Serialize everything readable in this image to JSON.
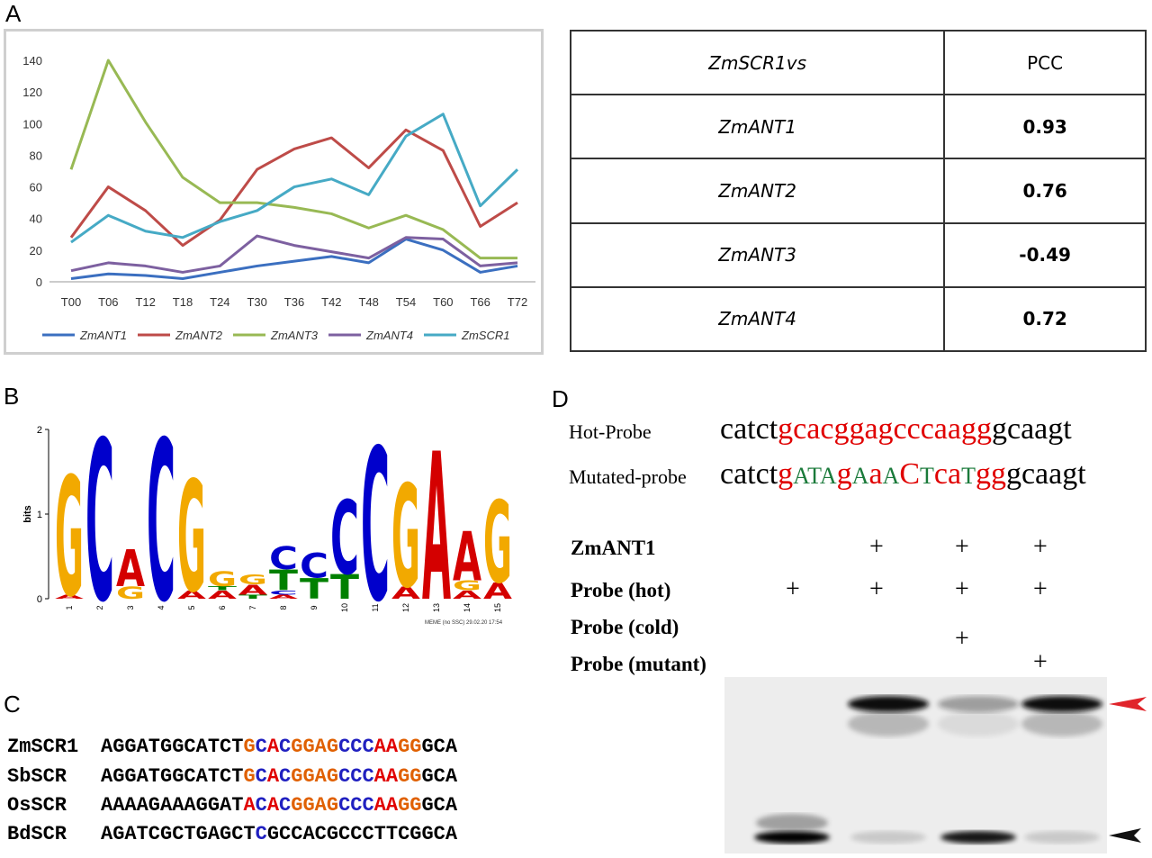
{
  "panels": {
    "a": "A",
    "b": "B",
    "c": "C",
    "d": "D"
  },
  "chart_data": {
    "type": "line",
    "categories": [
      "T00",
      "T06",
      "T12",
      "T18",
      "T24",
      "T30",
      "T36",
      "T42",
      "T48",
      "T54",
      "T60",
      "T66",
      "T72"
    ],
    "ylim": [
      0,
      140
    ],
    "yticks": [
      0,
      20,
      40,
      60,
      80,
      100,
      120,
      140
    ],
    "grid": false,
    "legend": "bottom",
    "series": [
      {
        "name": "ZmANT1",
        "color": "#3b6fc0",
        "values": [
          2,
          5,
          4,
          2,
          6,
          10,
          13,
          16,
          12,
          27,
          20,
          6,
          10
        ]
      },
      {
        "name": "ZmANT2",
        "color": "#be4b48",
        "values": [
          28,
          60,
          45,
          23,
          39,
          71,
          84,
          91,
          72,
          96,
          83,
          35,
          50
        ]
      },
      {
        "name": "ZmANT3",
        "color": "#98b954",
        "values": [
          71,
          140,
          101,
          66,
          50,
          50,
          47,
          43,
          34,
          42,
          33,
          15,
          15
        ]
      },
      {
        "name": "ZmANT4",
        "color": "#7d60a0",
        "values": [
          7,
          12,
          10,
          6,
          10,
          29,
          23,
          19,
          15,
          28,
          27,
          10,
          12
        ]
      },
      {
        "name": "ZmSCR1",
        "color": "#46aac5",
        "values": [
          25,
          42,
          32,
          28,
          38,
          45,
          60,
          65,
          55,
          92,
          106,
          48,
          71
        ]
      }
    ]
  },
  "pcc_table": {
    "header": [
      "ZmSCR1vs",
      "PCC"
    ],
    "rows": [
      {
        "gene": "ZmANT1",
        "pcc": "0.93"
      },
      {
        "gene": "ZmANT2",
        "pcc": "0.76"
      },
      {
        "gene": "ZmANT3",
        "pcc": "-0.49"
      },
      {
        "gene": "ZmANT4",
        "pcc": "0.72"
      }
    ]
  },
  "logo": {
    "ylabel": "bits",
    "yticks": [
      "0",
      "1",
      "2"
    ],
    "positions": [
      "1",
      "2",
      "3",
      "4",
      "5",
      "6",
      "7",
      "8",
      "9",
      "10",
      "11",
      "12",
      "13",
      "14",
      "15"
    ],
    "footer": "MEME (no SSC) 29.02.20 17:54",
    "colors": {
      "A": "#d40000",
      "C": "#0000cc",
      "G": "#f2a900",
      "T": "#008000"
    },
    "stacks": [
      [
        [
          "A",
          0.05
        ],
        [
          "G",
          1.45
        ]
      ],
      [
        [
          "C",
          1.95
        ]
      ],
      [
        [
          "G",
          0.15
        ],
        [
          "A",
          0.45
        ]
      ],
      [
        [
          "C",
          1.95
        ]
      ],
      [
        [
          "A",
          0.1
        ],
        [
          "G",
          1.35
        ]
      ],
      [
        [
          "A",
          0.1
        ],
        [
          "T",
          0.05
        ],
        [
          "G",
          0.18
        ]
      ],
      [
        [
          "T",
          0.05
        ],
        [
          "A",
          0.12
        ],
        [
          "G",
          0.12
        ]
      ],
      [
        [
          "A",
          0.05
        ],
        [
          "C",
          0.05
        ],
        [
          "T",
          0.25
        ],
        [
          "C",
          0.28
        ]
      ],
      [
        [
          "T",
          0.25
        ],
        [
          "C",
          0.3
        ]
      ],
      [
        [
          "T",
          0.3
        ],
        [
          "C",
          0.9
        ]
      ],
      [
        [
          "C",
          1.85
        ]
      ],
      [
        [
          "A",
          0.15
        ],
        [
          "G",
          1.25
        ]
      ],
      [
        [
          "A",
          1.8
        ]
      ],
      [
        [
          "A",
          0.1
        ],
        [
          "G",
          0.12
        ],
        [
          "A",
          0.6
        ]
      ],
      [
        [
          "A",
          0.2
        ],
        [
          "G",
          1.0
        ]
      ]
    ]
  },
  "alignment": {
    "colors": {
      "black": "#000000",
      "orange": "#e06000",
      "red": "#e00000",
      "blue": "#2020c0"
    },
    "rows": [
      {
        "name": "ZmSCR1",
        "segments": [
          [
            "AGGATGGCATCT",
            "black"
          ],
          [
            "G",
            "orange"
          ],
          [
            "C",
            "blue"
          ],
          [
            "A",
            "red"
          ],
          [
            "C",
            "blue"
          ],
          [
            "GGAG",
            "orange"
          ],
          [
            "CCC",
            "blue"
          ],
          [
            "AA",
            "red"
          ],
          [
            "GG",
            "orange"
          ],
          [
            "GCA",
            "black"
          ]
        ]
      },
      {
        "name": "SbSCR",
        "segments": [
          [
            "AGGATGGCATCT",
            "black"
          ],
          [
            "G",
            "orange"
          ],
          [
            "C",
            "blue"
          ],
          [
            "A",
            "red"
          ],
          [
            "C",
            "blue"
          ],
          [
            "GGAG",
            "orange"
          ],
          [
            "CCC",
            "blue"
          ],
          [
            "AA",
            "red"
          ],
          [
            "GG",
            "orange"
          ],
          [
            "GCA",
            "black"
          ]
        ]
      },
      {
        "name": "OsSCR",
        "segments": [
          [
            "AAAAGAAAGGAT",
            "black"
          ],
          [
            "A",
            "red"
          ],
          [
            "C",
            "blue"
          ],
          [
            "A",
            "red"
          ],
          [
            "C",
            "blue"
          ],
          [
            "GGAG",
            "orange"
          ],
          [
            "CCC",
            "blue"
          ],
          [
            "AA",
            "red"
          ],
          [
            "GG",
            "orange"
          ],
          [
            "GCA",
            "black"
          ]
        ]
      },
      {
        "name": "BdSCR",
        "segments": [
          [
            "AGATCGCTGAGCT",
            "black"
          ],
          [
            "C",
            "blue"
          ],
          [
            "GCCACGCCCTTCGGCA",
            "black"
          ]
        ]
      }
    ]
  },
  "probes": {
    "colors": {
      "black": "#000000",
      "red": "#e00000",
      "green": "#1a7a3a"
    },
    "hot": {
      "name": "Hot-Probe",
      "segments": [
        [
          "catct",
          "black"
        ],
        [
          "gcacggagcccaagg",
          "red"
        ],
        [
          "gcaagt",
          "black"
        ]
      ]
    },
    "mutated": {
      "name": "Mutated-probe",
      "segments": [
        [
          "catct",
          "black"
        ],
        [
          "g",
          "red"
        ],
        [
          "ATA",
          "green"
        ],
        [
          "g",
          "red"
        ],
        [
          "A",
          "green"
        ],
        [
          "a",
          "red"
        ],
        [
          "A",
          "green"
        ],
        [
          "C",
          "red"
        ],
        [
          "T",
          "green"
        ],
        [
          "ca",
          "red"
        ],
        [
          "T",
          "green"
        ],
        [
          "gg",
          "red"
        ],
        [
          "gcaagt",
          "black"
        ]
      ]
    }
  },
  "emsa": {
    "row_labels": [
      "ZmANT1",
      "Probe (hot)",
      "Probe (cold)",
      "Probe (mutant)"
    ],
    "plus_symbol": "+",
    "lanes": [
      {
        "ZmANT1": false,
        "hot": true,
        "cold": false,
        "mutant": false
      },
      {
        "ZmANT1": true,
        "hot": true,
        "cold": false,
        "mutant": false
      },
      {
        "ZmANT1": true,
        "hot": true,
        "cold": true,
        "mutant": false
      },
      {
        "ZmANT1": true,
        "hot": true,
        "cold": false,
        "mutant": true
      }
    ],
    "shifted_band_intensity": [
      0,
      1,
      0.35,
      1
    ],
    "free_probe_intensity": [
      1,
      0.15,
      0.9,
      0.15
    ],
    "arrow_colors": {
      "shifted": "#e0242a",
      "free": "#111111"
    }
  }
}
